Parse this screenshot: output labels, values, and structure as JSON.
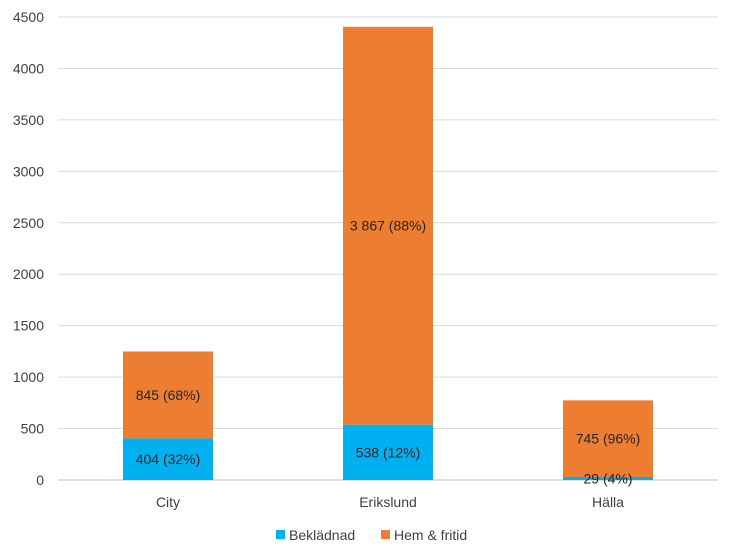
{
  "chart_data": {
    "type": "bar",
    "stacked": true,
    "categories": [
      "City",
      "Erikslund",
      "Hälla"
    ],
    "series": [
      {
        "name": "Beklädnad",
        "color": "#00B0F0",
        "values": [
          404,
          538,
          29
        ],
        "labels": [
          "404 (32%)",
          "538 (12%)",
          "29 (4%)"
        ]
      },
      {
        "name": "Hem & fritid",
        "color": "#ED7D31",
        "values": [
          845,
          3867,
          745
        ],
        "labels": [
          "845 (68%)",
          "3 867 (88%)",
          "745 (96%)"
        ]
      }
    ],
    "y_ticks": [
      "0",
      "500",
      "1000",
      "1500",
      "2000",
      "2500",
      "3000",
      "3500",
      "4000",
      "4500"
    ],
    "ylim": [
      0,
      4500
    ],
    "grid": true,
    "legend_position": "bottom",
    "title": "",
    "xlabel": "",
    "ylabel": ""
  }
}
